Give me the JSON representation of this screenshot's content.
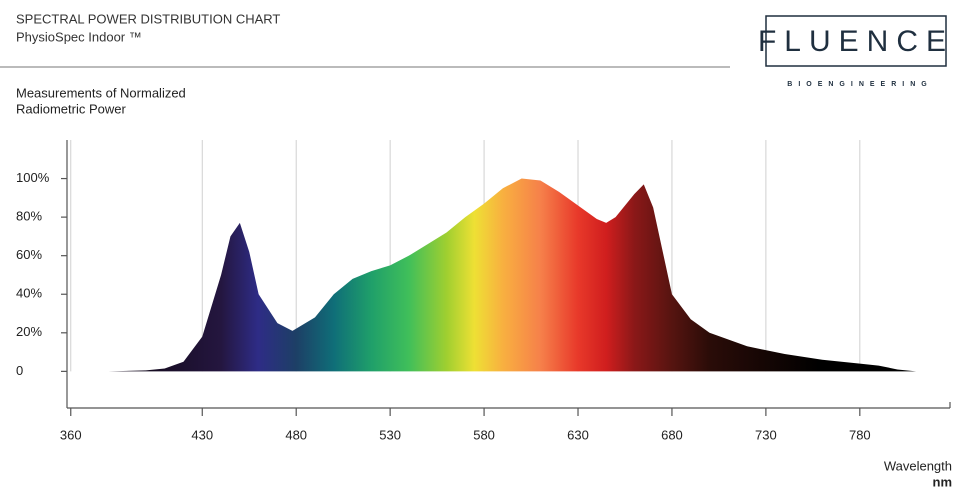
{
  "chart_data": {
    "type": "area",
    "title": "SPECTRAL POWER DISTRIBUTION CHART",
    "subtitle": "PhysioSpec Indoor ™",
    "brand": "FLUENCE",
    "brand_tagline": "BIOENGINEERING",
    "ylabel": [
      "Measurements of Normalized",
      "Radiometric Power"
    ],
    "xlabel": "Wavelength",
    "xunit": "nm",
    "x": [
      380,
      400,
      410,
      420,
      430,
      440,
      445,
      450,
      455,
      460,
      470,
      478,
      490,
      500,
      510,
      520,
      530,
      540,
      550,
      560,
      570,
      580,
      590,
      600,
      610,
      620,
      630,
      640,
      645,
      650,
      660,
      665,
      670,
      680,
      690,
      700,
      720,
      740,
      760,
      780,
      790,
      800,
      810
    ],
    "values": [
      0,
      0.5,
      1.5,
      5,
      18,
      50,
      70,
      77,
      62,
      40,
      25,
      21,
      28,
      40,
      48,
      52,
      55,
      60,
      66,
      72,
      80,
      87,
      95,
      100,
      99,
      93,
      86,
      79,
      77,
      80,
      92,
      97,
      85,
      40,
      27,
      20,
      13,
      9,
      6,
      4,
      3,
      1,
      0
    ],
    "xlim": [
      358,
      828
    ],
    "xticks": [
      360,
      430,
      480,
      530,
      580,
      630,
      680,
      730,
      780
    ],
    "ylim": [
      -19,
      120
    ],
    "yticks": [
      0,
      {
        "value": 20,
        "label": "20%"
      },
      {
        "value": 40,
        "label": "40%"
      },
      {
        "value": 60,
        "label": "60%"
      },
      {
        "value": 80,
        "label": "80%"
      },
      {
        "value": 100,
        "label": "100%"
      }
    ],
    "grid": true
  }
}
